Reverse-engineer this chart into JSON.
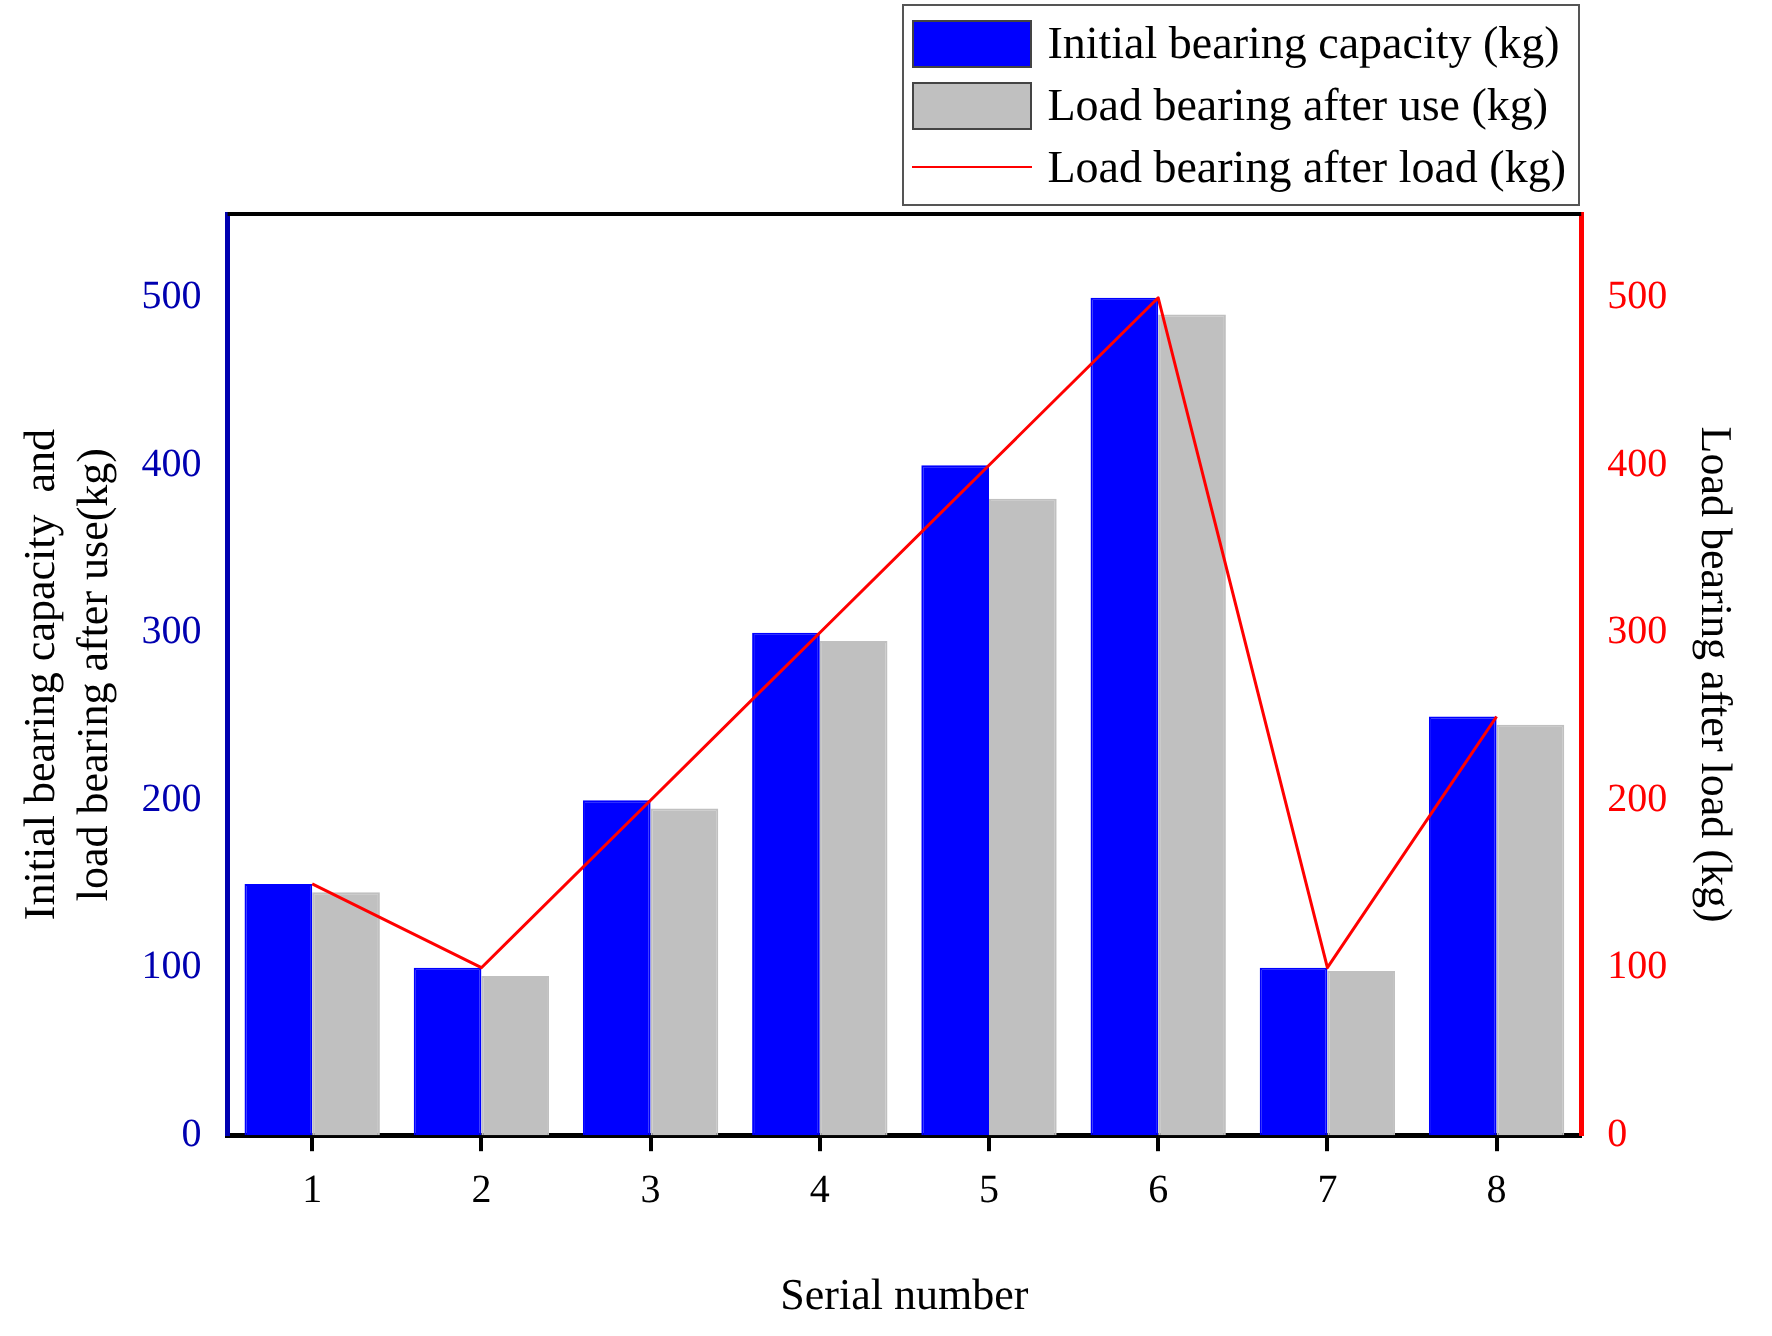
{
  "chart_data": {
    "type": "bar",
    "xlabel": "Serial number",
    "ylabel": "Initial bearing capacity  and load bearing after use(kg)",
    "y2label": "Load bearing after load (kg)",
    "categories": [
      "1",
      "2",
      "3",
      "4",
      "5",
      "6",
      "7",
      "8"
    ],
    "series": [
      {
        "name": "Initial bearing capacity (kg)",
        "color": "#0000ff",
        "values": [
          150,
          100,
          200,
          300,
          400,
          500,
          100,
          250
        ]
      },
      {
        "name": "Load bearing after use (kg)",
        "color": "#c0c0c0",
        "values": [
          145,
          95,
          195,
          295,
          380,
          490,
          98,
          245
        ]
      },
      {
        "name": "Load bearing after load (kg)",
        "type": "line",
        "axis": "y2",
        "color": "#ff0000",
        "marker": "none",
        "values": [
          150,
          100,
          200,
          300,
          400,
          500,
          100,
          250
        ]
      }
    ],
    "ylim": [
      0,
      550
    ],
    "yticks": [
      0,
      100,
      200,
      300,
      400,
      500
    ],
    "y2lim": [
      0,
      550
    ],
    "y2ticks": [
      0,
      100,
      200,
      300,
      400,
      500
    ],
    "grid": false,
    "legend": "top right"
  }
}
